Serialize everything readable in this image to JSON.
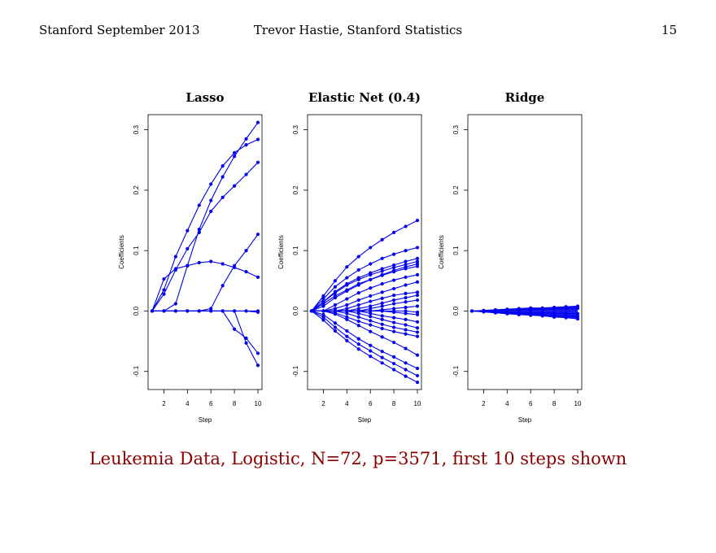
{
  "header": {
    "left": "Stanford September 2013",
    "center": "Trevor Hastie, Stanford Statistics",
    "right": "15"
  },
  "caption": "Leukemia Data, Logistic, N=72, p=3571, first 10 steps shown",
  "colors": {
    "line": "#0000ee",
    "caption": "#8b0000"
  },
  "chart_data": [
    {
      "type": "line",
      "title": "Lasso",
      "xlabel": "Step",
      "ylabel": "Coefficients",
      "x": [
        1,
        2,
        3,
        4,
        5,
        6,
        7,
        8,
        9,
        10
      ],
      "xticks": [
        "2",
        "4",
        "6",
        "8",
        "10"
      ],
      "yticks": [
        "-0.1",
        "0.0",
        "0.1",
        "0.2",
        "0.3"
      ],
      "xlim": [
        1,
        10
      ],
      "ylim": [
        -0.13,
        0.325
      ],
      "grid": false,
      "series": [
        {
          "values": [
            0,
            0.053,
            0.07,
            0.075,
            0.08,
            0.082,
            0.078,
            0.072,
            0.065,
            0.056
          ]
        },
        {
          "values": [
            0,
            0.035,
            0.09,
            0.133,
            0.175,
            0.21,
            0.24,
            0.262,
            0.275,
            0.284
          ]
        },
        {
          "values": [
            0,
            0.028,
            0.068,
            0.103,
            0.13,
            0.165,
            0.188,
            0.207,
            0.226,
            0.246
          ]
        },
        {
          "values": [
            0,
            0,
            0.012,
            0.075,
            0.135,
            0.183,
            0.222,
            0.256,
            0.285,
            0.312
          ]
        },
        {
          "values": [
            0,
            0,
            0,
            0,
            0,
            0.004,
            0.042,
            0.075,
            0.1,
            0.127
          ]
        },
        {
          "values": [
            0,
            0,
            0,
            0,
            0,
            0,
            0,
            -0.03,
            -0.045,
            -0.07
          ]
        },
        {
          "values": [
            0,
            0,
            0,
            0,
            0,
            0,
            0,
            0,
            -0.053,
            -0.09
          ]
        },
        {
          "values": [
            0,
            0,
            0,
            0,
            0,
            0,
            0,
            0,
            0,
            -0.002
          ]
        },
        {
          "values": [
            0,
            0,
            0,
            0,
            0,
            0,
            0,
            0,
            0,
            0
          ]
        }
      ]
    },
    {
      "type": "line",
      "title": "Elastic Net (0.4)",
      "xlabel": "Step",
      "ylabel": "Coefficients",
      "x": [
        1,
        2,
        3,
        4,
        5,
        6,
        7,
        8,
        9,
        10
      ],
      "xticks": [
        "2",
        "4",
        "6",
        "8",
        "10"
      ],
      "yticks": [
        "-0.1",
        "0.0",
        "0.1",
        "0.2",
        "0.3"
      ],
      "xlim": [
        1,
        10
      ],
      "ylim": [
        -0.13,
        0.325
      ],
      "grid": false,
      "series": [
        {
          "values": [
            0,
            0.025,
            0.05,
            0.073,
            0.09,
            0.105,
            0.118,
            0.13,
            0.14,
            0.15
          ]
        },
        {
          "values": [
            0,
            0.02,
            0.04,
            0.055,
            0.068,
            0.078,
            0.087,
            0.094,
            0.1,
            0.105
          ]
        },
        {
          "values": [
            0,
            0.015,
            0.032,
            0.045,
            0.055,
            0.063,
            0.07,
            0.076,
            0.082,
            0.087
          ]
        },
        {
          "values": [
            0,
            0.015,
            0.03,
            0.043,
            0.052,
            0.06,
            0.066,
            0.072,
            0.077,
            0.082
          ]
        },
        {
          "values": [
            0,
            0.012,
            0.025,
            0.035,
            0.045,
            0.052,
            0.06,
            0.067,
            0.073,
            0.078
          ]
        },
        {
          "values": [
            0,
            0.008,
            0.022,
            0.033,
            0.043,
            0.052,
            0.059,
            0.065,
            0.07,
            0.074
          ]
        },
        {
          "values": [
            0,
            0,
            0.01,
            0.02,
            0.03,
            0.038,
            0.045,
            0.051,
            0.056,
            0.06
          ]
        },
        {
          "values": [
            0,
            0,
            0.004,
            0.01,
            0.018,
            0.025,
            0.031,
            0.037,
            0.043,
            0.048
          ]
        },
        {
          "values": [
            0,
            0,
            0,
            0.004,
            0.01,
            0.016,
            0.021,
            0.026,
            0.029,
            0.031
          ]
        },
        {
          "values": [
            0,
            0,
            0,
            0,
            0.004,
            0.008,
            0.013,
            0.018,
            0.022,
            0.026
          ]
        },
        {
          "values": [
            0,
            0,
            0,
            0,
            0,
            0.004,
            0.008,
            0.012,
            0.015,
            0.018
          ]
        },
        {
          "values": [
            0,
            0,
            0,
            0,
            0,
            0,
            0.002,
            0.004,
            0.006,
            0.008
          ]
        },
        {
          "values": [
            0,
            0,
            0,
            0,
            0,
            0,
            0,
            0,
            0,
            -0.002
          ]
        },
        {
          "values": [
            0,
            0,
            0,
            0,
            0,
            0,
            0,
            -0.002,
            -0.004,
            -0.006
          ]
        },
        {
          "values": [
            0,
            0,
            0,
            0,
            0,
            -0.004,
            -0.008,
            -0.011,
            -0.014,
            -0.018
          ]
        },
        {
          "values": [
            0,
            0,
            0,
            0,
            -0.004,
            -0.009,
            -0.014,
            -0.019,
            -0.023,
            -0.028
          ]
        },
        {
          "values": [
            0,
            0,
            0,
            -0.004,
            -0.01,
            -0.016,
            -0.022,
            -0.027,
            -0.031,
            -0.035
          ]
        },
        {
          "values": [
            0,
            0,
            -0.003,
            -0.01,
            -0.017,
            -0.023,
            -0.029,
            -0.034,
            -0.038,
            -0.042
          ]
        },
        {
          "values": [
            0,
            0,
            -0.005,
            -0.014,
            -0.024,
            -0.034,
            -0.043,
            -0.052,
            -0.062,
            -0.073
          ]
        },
        {
          "values": [
            0,
            -0.006,
            -0.02,
            -0.033,
            -0.046,
            -0.057,
            -0.067,
            -0.076,
            -0.086,
            -0.095
          ]
        },
        {
          "values": [
            0,
            -0.01,
            -0.027,
            -0.042,
            -0.055,
            -0.066,
            -0.077,
            -0.087,
            -0.097,
            -0.107
          ]
        },
        {
          "values": [
            0,
            -0.015,
            -0.033,
            -0.049,
            -0.063,
            -0.075,
            -0.086,
            -0.097,
            -0.108,
            -0.118
          ]
        }
      ]
    },
    {
      "type": "line",
      "title": "Ridge",
      "xlabel": "Step",
      "ylabel": "Coefficients",
      "x": [
        1,
        2,
        3,
        4,
        5,
        6,
        7,
        8,
        9,
        10
      ],
      "xticks": [
        "2",
        "4",
        "6",
        "8",
        "10"
      ],
      "yticks": [
        "-0.1",
        "0.0",
        "0.1",
        "0.2",
        "0.3"
      ],
      "xlim": [
        1,
        10
      ],
      "ylim": [
        -0.13,
        0.325
      ],
      "grid": false,
      "envelope": {
        "upper": 0.008,
        "lower": -0.013
      },
      "series": [
        {
          "values": [
            0,
            0.001,
            0.002,
            0.003,
            0.004,
            0.005,
            0.005,
            0.006,
            0.007,
            0.008
          ]
        },
        {
          "values": [
            0,
            0.0005,
            0.001,
            0.0015,
            0.002,
            0.0025,
            0.003,
            0.0035,
            0.004,
            0.0045
          ]
        },
        {
          "values": [
            0,
            -0.0005,
            -0.001,
            -0.0015,
            -0.002,
            -0.0025,
            -0.003,
            -0.0035,
            -0.004,
            -0.0045
          ]
        },
        {
          "values": [
            0,
            -0.001,
            -0.002,
            -0.003,
            -0.004,
            -0.005,
            -0.006,
            -0.007,
            -0.008,
            -0.009
          ]
        },
        {
          "values": [
            0,
            -0.0015,
            -0.003,
            -0.0045,
            -0.006,
            -0.007,
            -0.008,
            -0.01,
            -0.011,
            -0.013
          ]
        }
      ]
    }
  ]
}
